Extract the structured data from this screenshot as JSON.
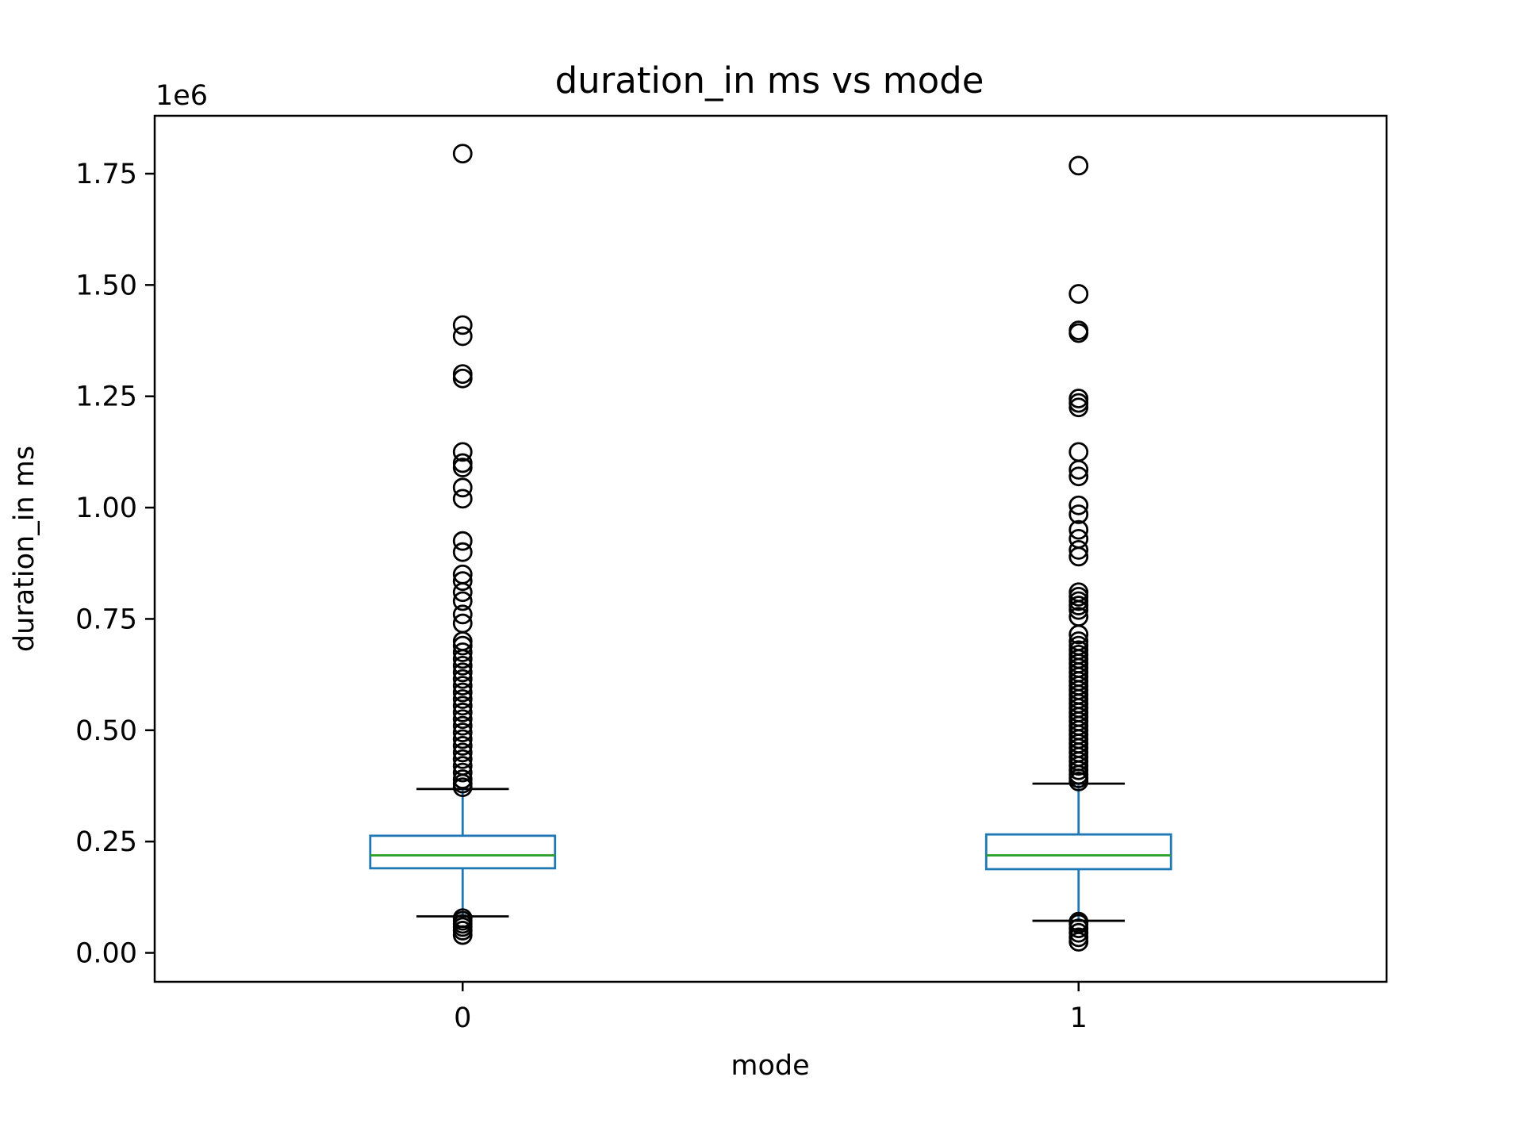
{
  "chart_data": {
    "type": "boxplot",
    "title": "duration_in ms vs mode",
    "xlabel": "mode",
    "ylabel": "duration_in ms",
    "y_offset_label": "1e6",
    "y_scale_factor": 1000000,
    "ylim": [
      -65000,
      1880000
    ],
    "yticks": [
      0,
      250000,
      500000,
      750000,
      1000000,
      1250000,
      1500000,
      1750000
    ],
    "ytick_labels": [
      "0.00",
      "0.25",
      "0.50",
      "0.75",
      "1.00",
      "1.25",
      "1.50",
      "1.75"
    ],
    "categories": [
      "0",
      "1"
    ],
    "grid": false,
    "colors": {
      "box": "#1f77b4",
      "median": "#2ca02c",
      "caps": "#000000",
      "fliers": "#000000",
      "axes": "#000000"
    },
    "boxes": [
      {
        "category": "0",
        "q1": 190000,
        "median": 219000,
        "q3": 263000,
        "whisker_low": 82000,
        "whisker_high": 368000,
        "fliers": [
          1795000,
          1410000,
          1385000,
          1300000,
          1290000,
          1125000,
          1100000,
          1090000,
          1045000,
          1020000,
          925000,
          900000,
          850000,
          835000,
          810000,
          790000,
          760000,
          740000,
          700000,
          690000,
          675000,
          660000,
          645000,
          630000,
          615000,
          600000,
          585000,
          570000,
          555000,
          540000,
          525000,
          510000,
          495000,
          480000,
          465000,
          450000,
          435000,
          420000,
          405000,
          390000,
          380000,
          372000,
          78000,
          72000,
          65000,
          58000,
          50000,
          40000
        ]
      },
      {
        "category": "1",
        "q1": 188000,
        "median": 219000,
        "q3": 266000,
        "whisker_low": 72000,
        "whisker_high": 380000,
        "fliers": [
          1768000,
          1480000,
          1398000,
          1392000,
          1245000,
          1235000,
          1225000,
          1125000,
          1085000,
          1070000,
          1005000,
          985000,
          950000,
          930000,
          905000,
          890000,
          810000,
          800000,
          790000,
          780000,
          770000,
          755000,
          715000,
          700000,
          690000,
          680000,
          670000,
          660000,
          650000,
          640000,
          630000,
          620000,
          610000,
          600000,
          590000,
          580000,
          570000,
          560000,
          550000,
          540000,
          530000,
          520000,
          510000,
          500000,
          490000,
          480000,
          470000,
          460000,
          450000,
          440000,
          430000,
          420000,
          410000,
          400000,
          392000,
          385000,
          70000,
          65000,
          55000,
          45000,
          35000,
          25000
        ]
      }
    ]
  }
}
